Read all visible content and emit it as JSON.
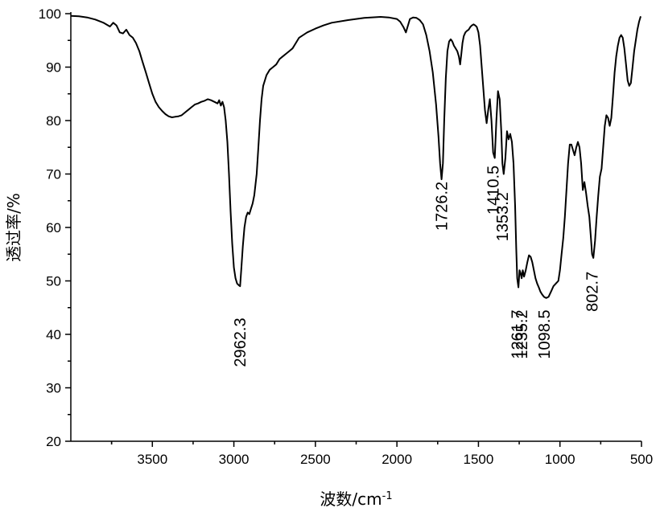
{
  "chart_data": {
    "type": "line",
    "title": "",
    "xlabel": "波数/cm",
    "xlabel_sup": "-1",
    "ylabel": "透过率/%",
    "x_reversed": true,
    "xlim": [
      4000,
      500
    ],
    "ylim": [
      20,
      100
    ],
    "grid": false,
    "xticks": [
      3500,
      3000,
      2500,
      2000,
      1500,
      1000,
      500
    ],
    "xtick_labels": [
      "3500",
      "3000",
      "2500",
      "2000",
      "1500",
      "1000",
      "500"
    ],
    "yticks": [
      20,
      30,
      40,
      50,
      60,
      70,
      80,
      90,
      100
    ],
    "ytick_labels": [
      "20",
      "30",
      "40",
      "50",
      "60",
      "70",
      "80",
      "90",
      "100"
    ],
    "series": [
      {
        "x": [
          4000,
          3950,
          3900,
          3850,
          3800,
          3760,
          3740,
          3720,
          3700,
          3680,
          3660,
          3640,
          3620,
          3600,
          3580,
          3560,
          3540,
          3520,
          3500,
          3480,
          3460,
          3440,
          3420,
          3400,
          3380,
          3360,
          3340,
          3320,
          3300,
          3280,
          3260,
          3240,
          3220,
          3200,
          3180,
          3160,
          3140,
          3120,
          3100,
          3090,
          3080,
          3070,
          3060,
          3050,
          3040,
          3030,
          3020,
          3010,
          3000,
          2990,
          2980,
          2970,
          2962,
          2955,
          2945,
          2935,
          2925,
          2915,
          2905,
          2895,
          2885,
          2875,
          2860,
          2850,
          2840,
          2830,
          2820,
          2800,
          2780,
          2760,
          2740,
          2720,
          2700,
          2680,
          2660,
          2640,
          2620,
          2600,
          2550,
          2500,
          2450,
          2400,
          2300,
          2200,
          2100,
          2050,
          2000,
          1980,
          1960,
          1945,
          1935,
          1920,
          1900,
          1880,
          1860,
          1840,
          1820,
          1800,
          1780,
          1760,
          1745,
          1735,
          1726,
          1718,
          1710,
          1700,
          1690,
          1680,
          1670,
          1660,
          1650,
          1640,
          1630,
          1620,
          1612,
          1605,
          1598,
          1590,
          1580,
          1570,
          1560,
          1550,
          1540,
          1530,
          1520,
          1510,
          1500,
          1490,
          1480,
          1470,
          1460,
          1450,
          1440,
          1430,
          1420,
          1410,
          1400,
          1390,
          1380,
          1370,
          1360,
          1353,
          1345,
          1335,
          1325,
          1315,
          1305,
          1295,
          1285,
          1275,
          1268,
          1262,
          1255,
          1248,
          1242,
          1235,
          1228,
          1220,
          1210,
          1200,
          1190,
          1180,
          1170,
          1160,
          1150,
          1140,
          1130,
          1120,
          1110,
          1098,
          1085,
          1070,
          1055,
          1040,
          1025,
          1010,
          1000,
          990,
          980,
          970,
          960,
          950,
          940,
          930,
          920,
          910,
          900,
          890,
          880,
          870,
          860,
          850,
          840,
          830,
          820,
          810,
          803,
          795,
          785,
          775,
          765,
          755,
          745,
          735,
          725,
          715,
          705,
          695,
          685,
          675,
          665,
          655,
          645,
          635,
          625,
          615,
          605,
          595,
          585,
          575,
          565,
          555,
          545,
          535,
          525,
          515,
          505
        ],
        "y": [
          99.6,
          99.5,
          99.3,
          98.9,
          98.3,
          97.6,
          98.3,
          97.8,
          96.5,
          96.3,
          97.0,
          96.0,
          95.5,
          94.5,
          93.0,
          91.0,
          89.0,
          87.0,
          85.0,
          83.5,
          82.5,
          81.8,
          81.2,
          80.8,
          80.6,
          80.7,
          80.8,
          81.0,
          81.5,
          82.0,
          82.5,
          83.0,
          83.2,
          83.5,
          83.7,
          84.0,
          83.8,
          83.5,
          83.2,
          83.8,
          82.8,
          83.5,
          82.5,
          80.0,
          76.0,
          70.0,
          63.0,
          57.0,
          52.5,
          50.5,
          49.5,
          49.2,
          49.0,
          52.0,
          56.5,
          60.0,
          62.0,
          62.8,
          62.5,
          63.5,
          64.5,
          66.0,
          70.0,
          75.0,
          80.0,
          84.0,
          86.5,
          88.5,
          89.5,
          90.0,
          90.5,
          91.5,
          92.0,
          92.5,
          93.0,
          93.5,
          94.5,
          95.5,
          96.5,
          97.2,
          97.8,
          98.3,
          98.8,
          99.2,
          99.4,
          99.3,
          99.0,
          98.5,
          97.5,
          96.5,
          97.5,
          99.0,
          99.3,
          99.2,
          98.8,
          98.0,
          96.0,
          93.0,
          89.0,
          83.0,
          77.0,
          72.0,
          69.0,
          72.0,
          80.0,
          88.0,
          93.0,
          94.8,
          95.2,
          94.8,
          94.0,
          93.5,
          93.0,
          92.0,
          90.5,
          92.5,
          94.5,
          95.8,
          96.5,
          96.8,
          97.0,
          97.5,
          97.8,
          98.0,
          97.8,
          97.5,
          96.5,
          94.0,
          90.0,
          86.0,
          82.0,
          79.5,
          82.0,
          84.0,
          80.0,
          74.0,
          73.0,
          80.0,
          85.5,
          84.0,
          78.0,
          72.0,
          70.0,
          73.0,
          78.0,
          76.5,
          77.5,
          76.0,
          72.0,
          64.0,
          56.0,
          50.5,
          48.8,
          52.0,
          51.5,
          50.5,
          52.0,
          50.8,
          52.0,
          53.5,
          54.8,
          54.5,
          53.5,
          52.0,
          50.5,
          49.5,
          48.8,
          48.0,
          47.5,
          47.0,
          46.8,
          47.0,
          48.0,
          49.0,
          49.5,
          50.0,
          52.0,
          55.0,
          58.0,
          62.0,
          67.0,
          72.0,
          75.5,
          75.5,
          74.5,
          73.5,
          75.0,
          76.0,
          75.0,
          72.0,
          67.0,
          68.5,
          66.5,
          64.0,
          62.0,
          58.0,
          55.0,
          54.3,
          57.5,
          62.0,
          66.0,
          69.5,
          71.0,
          75.0,
          79.0,
          81.0,
          80.5,
          79.0,
          80.5,
          84.5,
          89.0,
          92.0,
          94.0,
          95.5,
          96.0,
          95.5,
          93.5,
          90.5,
          87.5,
          86.5,
          87.0,
          90.0,
          93.0,
          95.0,
          97.0,
          98.5,
          99.5
        ]
      }
    ],
    "annotations": [
      {
        "text": "2962.3",
        "x": 2962.3,
        "y": 38.5
      },
      {
        "text": "1726.2",
        "x": 1726.2,
        "y": 64.0
      },
      {
        "text": "1410.5",
        "x": 1410.5,
        "y": 67.0
      },
      {
        "text": "1353.2",
        "x": 1353.2,
        "y": 62.0
      },
      {
        "text": "1261.7",
        "x": 1261.7,
        "y": 40.0
      },
      {
        "text": "1235.2",
        "x": 1235.2,
        "y": 40.0
      },
      {
        "text": "1098.5",
        "x": 1098.5,
        "y": 40.0
      },
      {
        "text": "802.7",
        "x": 802.7,
        "y": 48.0
      }
    ]
  }
}
